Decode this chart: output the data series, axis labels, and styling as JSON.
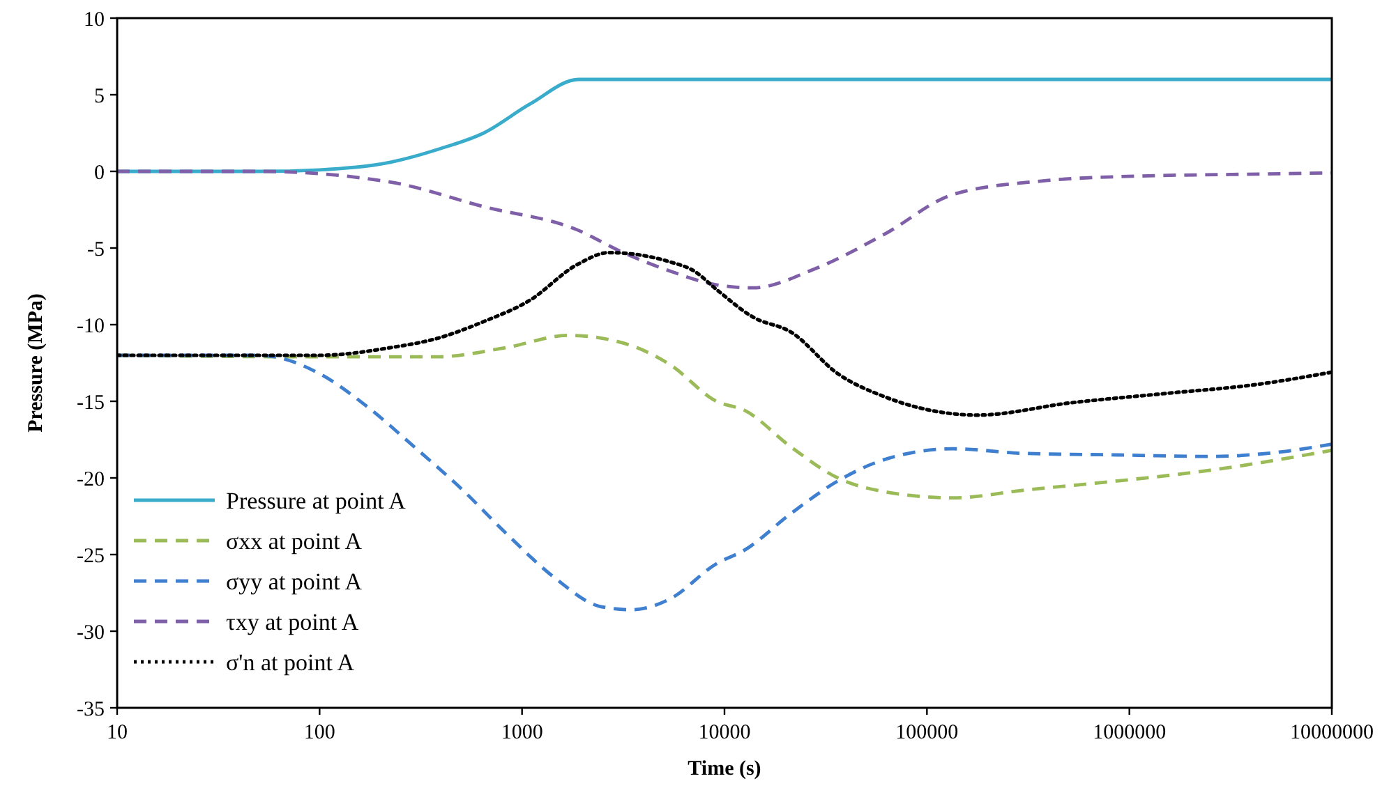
{
  "chart_data": {
    "type": "line",
    "xlabel": "Time (s)",
    "ylabel": "Pressure (MPa)",
    "log": "x",
    "xlim": [
      10,
      10000000
    ],
    "xticks": [
      10,
      100,
      1000,
      10000,
      100000,
      1000000,
      10000000
    ],
    "ylim": [
      -35,
      10
    ],
    "yticks": [
      -35,
      -30,
      -25,
      -20,
      -15,
      -10,
      -5,
      0,
      5,
      10
    ],
    "grid": false,
    "legend": "bottom left",
    "marker": "none",
    "series": [
      {
        "name": "Pressure at point A",
        "color": "#3aaccb",
        "line_style": "solid",
        "x": [
          10,
          50,
          100,
          224,
          398,
          646,
          1096,
          1905,
          10000000
        ],
        "values": [
          0,
          0,
          0.1,
          0.6,
          1.5,
          2.5,
          4.4,
          6,
          6
        ]
      },
      {
        "name": "σxx at point A",
        "color": "#9bbb59",
        "line_style": "dashed",
        "x": [
          10,
          100,
          200,
          380,
          832,
          1700,
          3162,
          5370,
          9120,
          12600,
          21400,
          36300,
          61700,
          135000,
          302000,
          871000,
          2510000,
          10000000
        ],
        "values": [
          -12,
          -12.1,
          -12.1,
          -12.1,
          -11.5,
          -10.7,
          -11.2,
          -12.6,
          -15,
          -15.6,
          -18,
          -20,
          -20.9,
          -21.3,
          -20.8,
          -20.2,
          -19.5,
          -18.2
        ]
      },
      {
        "name": "σyy at point A",
        "color": "#3f7fcf",
        "line_style": "dashed",
        "x": [
          10,
          50,
          60,
          100,
          170,
          295,
          501,
          832,
          1445,
          2455,
          3467,
          5370,
          9120,
          12600,
          21400,
          36300,
          61700,
          135000,
          302000,
          871000,
          2510000,
          5620000,
          10000000
        ],
        "values": [
          -12,
          -12,
          -12.1,
          -13.2,
          -15.3,
          -18,
          -20.7,
          -23.6,
          -26.5,
          -28.4,
          -28.6,
          -27.9,
          -25.6,
          -24.7,
          -22.3,
          -20.2,
          -18.8,
          -18.1,
          -18.4,
          -18.5,
          -18.6,
          -18.3,
          -17.8
        ]
      },
      {
        "name": "τxy at point A",
        "color": "#7f5fa8",
        "line_style": "dashed",
        "x": [
          10,
          50,
          224,
          646,
          1862,
          3162,
          5370,
          9120,
          13800,
          27500,
          61700,
          135000,
          389000,
          1150000,
          3240000,
          10000000
        ],
        "values": [
          0,
          0,
          -0.7,
          -2.3,
          -3.8,
          -5.3,
          -6.5,
          -7.4,
          -7.6,
          -6.4,
          -4.1,
          -1.5,
          -0.6,
          -0.3,
          -0.2,
          -0.1
        ]
      },
      {
        "name": "σ'n at point A",
        "color": "#000000",
        "line_style": "dotted",
        "x": [
          10,
          100,
          224,
          380,
          646,
          1096,
          1862,
          2692,
          5370,
          7079,
          9120,
          13800,
          21400,
          36300,
          61700,
          105000,
          178000,
          513000,
          1480000,
          4270000,
          10000000
        ],
        "values": [
          -12,
          -12,
          -11.5,
          -10.9,
          -9.8,
          -8.4,
          -6.1,
          -5.3,
          -5.9,
          -6.5,
          -7.7,
          -9.5,
          -10.5,
          -13.2,
          -14.7,
          -15.6,
          -15.9,
          -15.1,
          -14.5,
          -13.9,
          -13.1
        ]
      }
    ]
  }
}
